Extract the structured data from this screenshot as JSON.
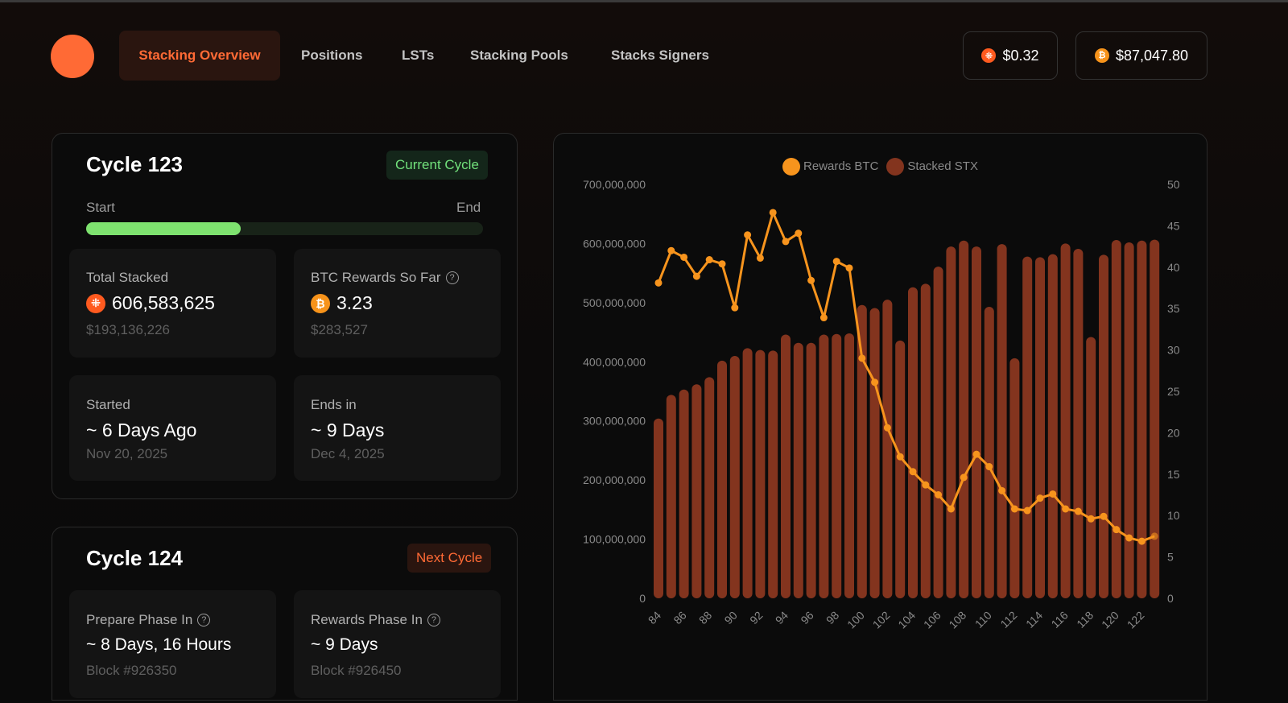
{
  "nav": {
    "items": [
      {
        "label": "Stacking Overview",
        "active": true
      },
      {
        "label": "Positions"
      },
      {
        "label": "LSTs"
      },
      {
        "label": "Stacking Pools"
      },
      {
        "label": "Stacks Signers"
      }
    ]
  },
  "prices": {
    "stx": {
      "icon": "stx-icon",
      "value": "$0.32"
    },
    "btc": {
      "icon": "bitcoin-icon",
      "value": "$87,047.80"
    }
  },
  "current_cycle": {
    "title": "Cycle 123",
    "badge": "Current Cycle",
    "start_label": "Start",
    "end_label": "End",
    "progress_percent": 39,
    "total_stacked": {
      "label": "Total Stacked",
      "value": "606,583,625",
      "usd": "$193,136,226"
    },
    "btc_rewards": {
      "label": "BTC Rewards So Far",
      "value": "3.23",
      "usd": "$283,527"
    },
    "started": {
      "label": "Started",
      "value": "~ 6 Days Ago",
      "date": "Nov 20, 2025"
    },
    "ends": {
      "label": "Ends in",
      "value": "~ 9 Days",
      "date": "Dec 4, 2025"
    }
  },
  "next_cycle": {
    "title": "Cycle 124",
    "badge": "Next Cycle",
    "prepare": {
      "label": "Prepare Phase In",
      "value": "~ 8 Days, 16 Hours",
      "block": "Block #926350"
    },
    "rewards": {
      "label": "Rewards Phase In",
      "value": "~ 9 Days",
      "block": "Block #926450"
    }
  },
  "chart_data": {
    "type": "bar+line",
    "legend": [
      {
        "name": "Rewards BTC",
        "color": "#f7941d"
      },
      {
        "name": "Stacked STX",
        "color": "#83341e"
      }
    ],
    "legend_position": "top-center",
    "x": [
      84,
      85,
      86,
      87,
      88,
      89,
      90,
      91,
      92,
      93,
      94,
      95,
      96,
      97,
      98,
      99,
      100,
      101,
      102,
      103,
      104,
      105,
      106,
      107,
      108,
      109,
      110,
      111,
      112,
      113,
      114,
      115,
      116,
      117,
      118,
      119,
      120,
      121,
      122,
      123
    ],
    "x_tick_labels": [
      "84",
      "86",
      "88",
      "90",
      "92",
      "94",
      "96",
      "98",
      "100",
      "102",
      "104",
      "106",
      "108",
      "110",
      "112",
      "114",
      "116",
      "118",
      "120",
      "122"
    ],
    "series": [
      {
        "name": "Stacked STX",
        "type": "bar",
        "axis": "left",
        "values": [
          304000000,
          344000000,
          353000000,
          362000000,
          374000000,
          402000000,
          410000000,
          423000000,
          420000000,
          419000000,
          446000000,
          432000000,
          432000000,
          446000000,
          447000000,
          448000000,
          496000000,
          491000000,
          505000000,
          436000000,
          526000000,
          532000000,
          561000000,
          595000000,
          605000000,
          595000000,
          493000000,
          599000000,
          406000000,
          578000000,
          577000000,
          582000000,
          600000000,
          591000000,
          442000000,
          581000000,
          606000000,
          602000000,
          605000000,
          606583625
        ]
      },
      {
        "name": "Rewards BTC",
        "type": "line",
        "axis": "right",
        "values": [
          38.1,
          42.0,
          41.2,
          38.9,
          40.9,
          40.4,
          35.1,
          43.9,
          41.1,
          46.6,
          43.1,
          44.1,
          38.4,
          33.9,
          40.7,
          39.9,
          29.0,
          26.1,
          20.6,
          17.1,
          15.3,
          13.7,
          12.5,
          10.8,
          14.6,
          17.4,
          15.9,
          13.0,
          10.8,
          10.6,
          12.1,
          12.6,
          10.8,
          10.5,
          9.6,
          9.9,
          8.3,
          7.3,
          6.9,
          7.5
        ]
      }
    ],
    "left_axis": {
      "range": [
        0,
        700000000
      ],
      "ticks": [
        "0",
        "100,000,000",
        "200,000,000",
        "300,000,000",
        "400,000,000",
        "500,000,000",
        "600,000,000",
        "700,000,000"
      ]
    },
    "right_axis": {
      "range": [
        0,
        50
      ],
      "ticks": [
        "0",
        "5",
        "10",
        "15",
        "20",
        "25",
        "30",
        "35",
        "40",
        "45",
        "50"
      ]
    },
    "grid": false
  }
}
